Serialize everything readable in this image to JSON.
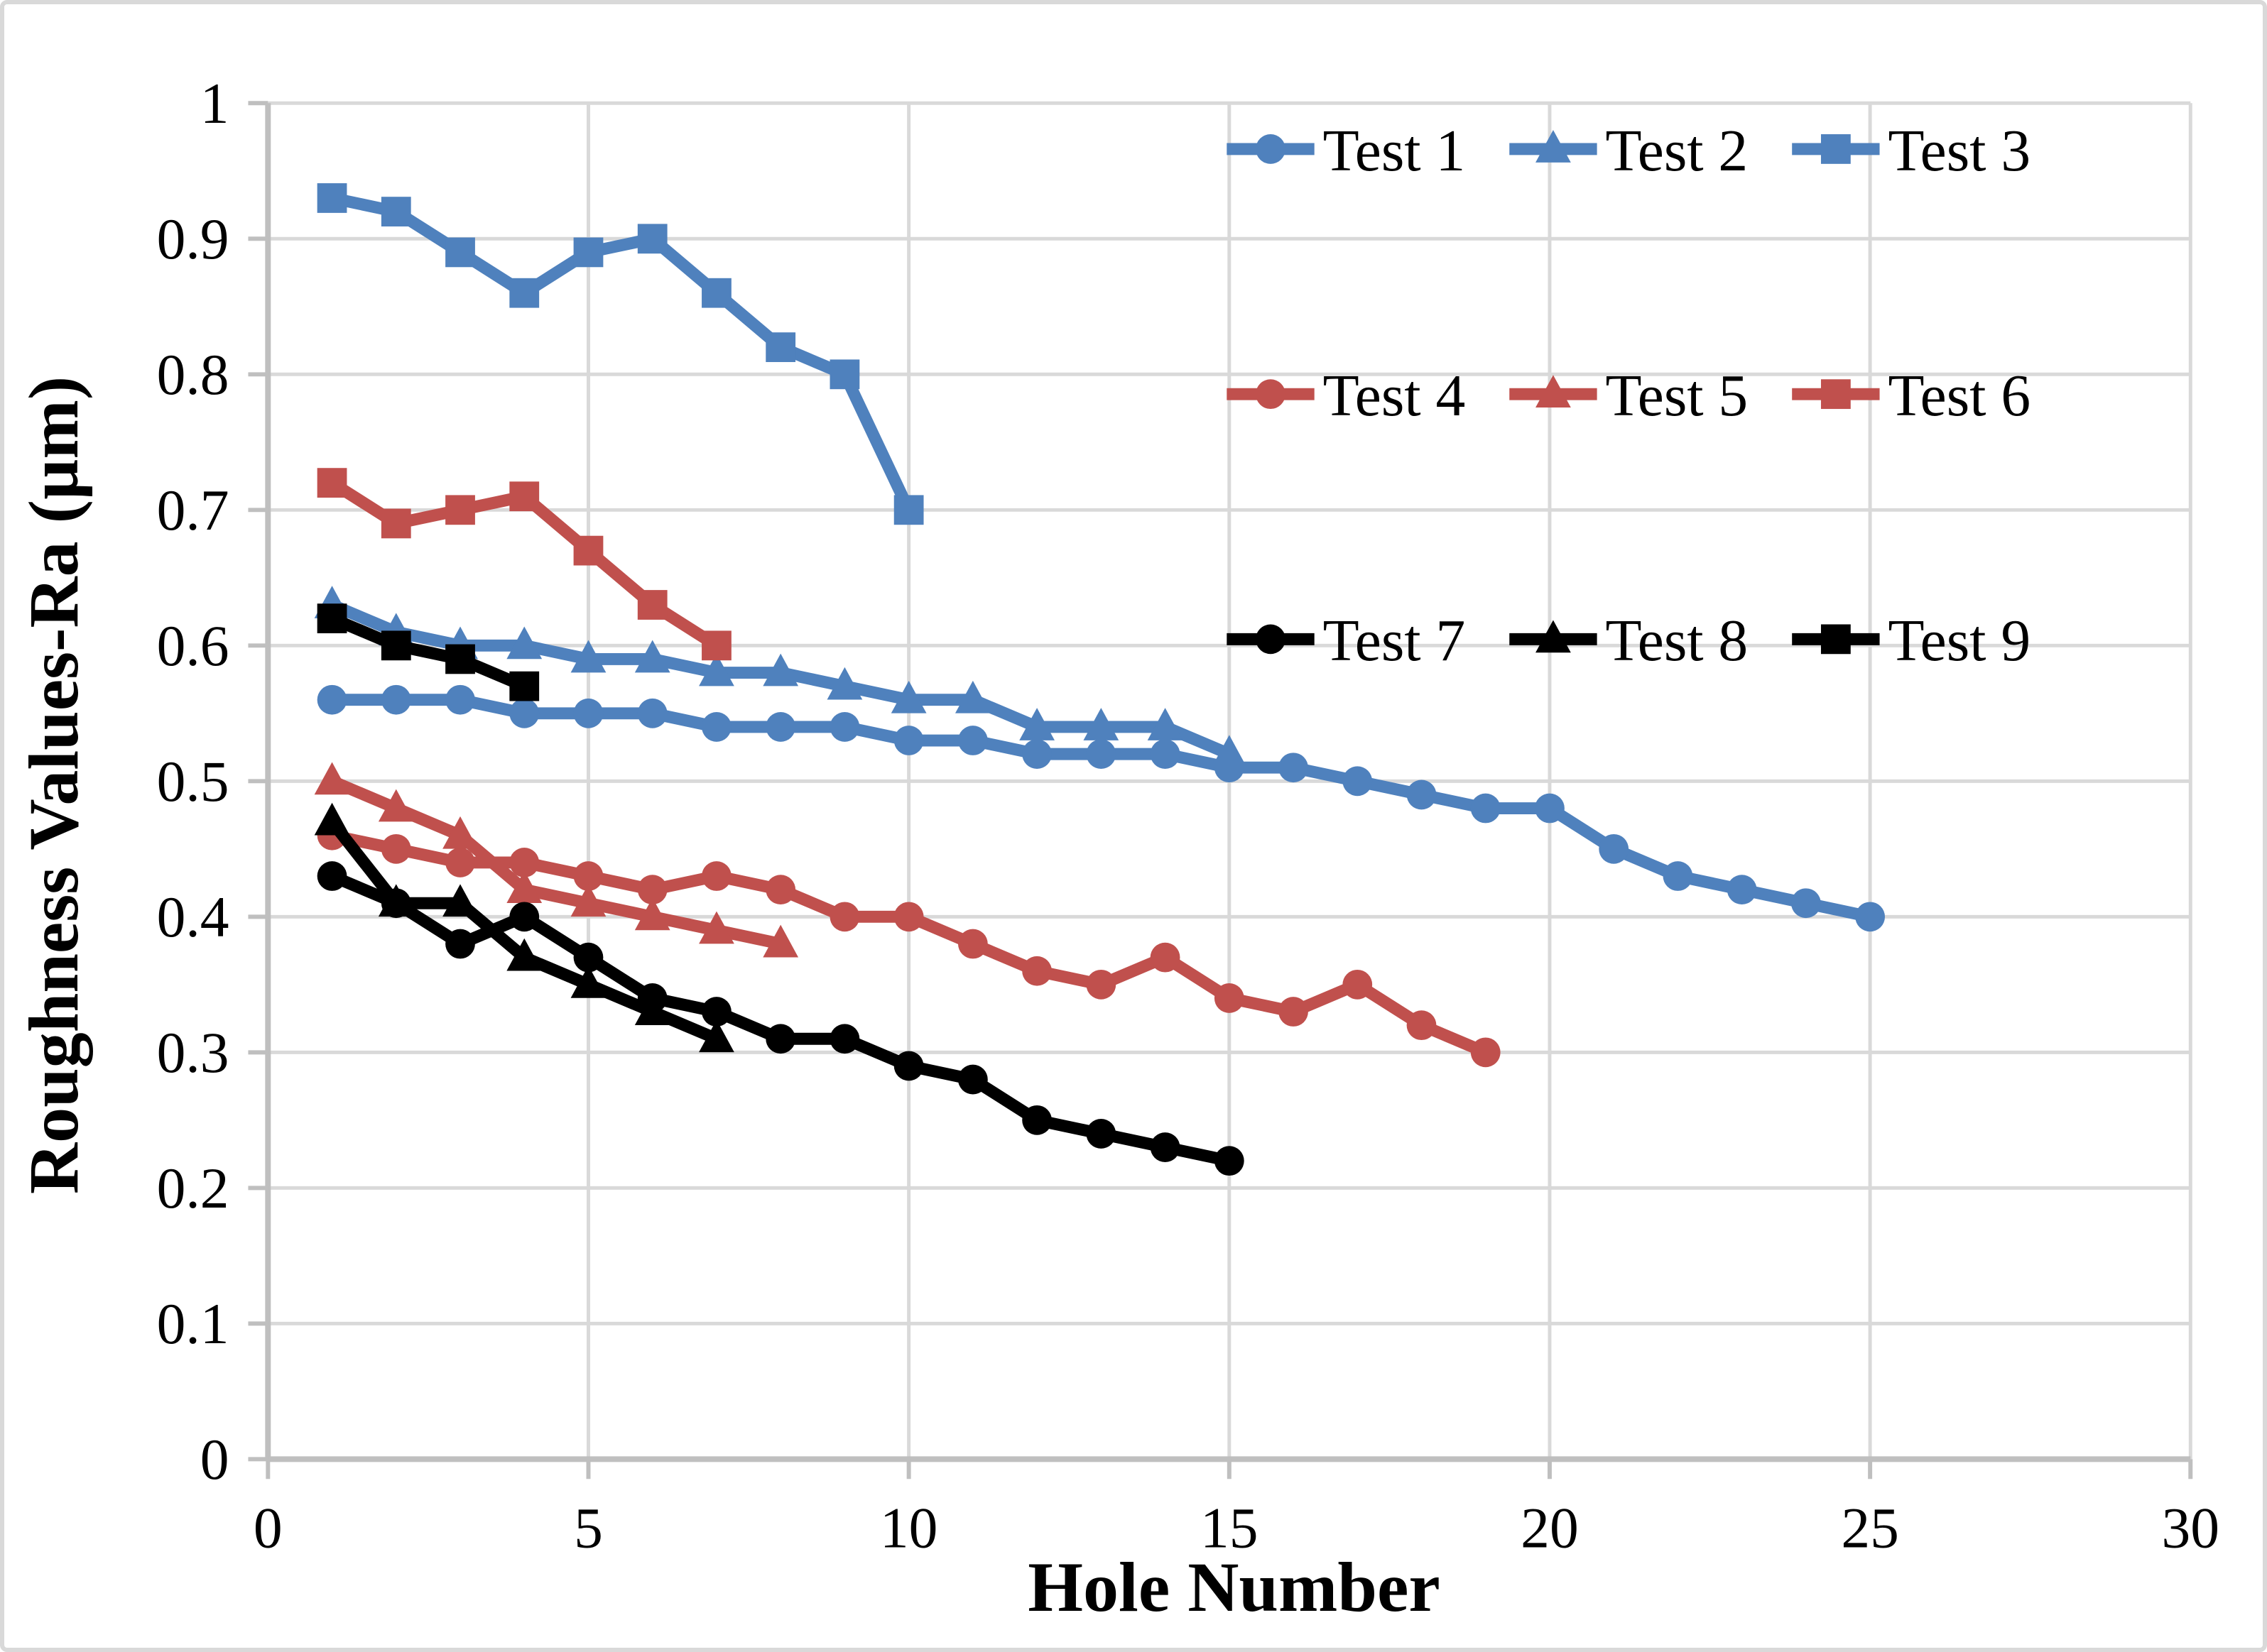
{
  "figure": {
    "background": "#ffffff",
    "border_color": "#d9d9d9"
  },
  "chart_data": {
    "type": "line",
    "title": "",
    "xlabel": "Hole Number",
    "ylabel": "Roughness Values-Ra (µm)",
    "xlim": [
      0,
      30
    ],
    "ylim": [
      0,
      1
    ],
    "xticks": [
      0,
      5,
      10,
      15,
      20,
      25,
      30
    ],
    "yticks": [
      0,
      0.1,
      0.2,
      0.3,
      0.4,
      0.5,
      0.6,
      0.7,
      0.8,
      0.9,
      1
    ],
    "grid": true,
    "gridline_color": "#d9d9d9",
    "axis_line_color": "#bfbfbf",
    "text_color": "#000000",
    "legend_position": "inside-top-right",
    "legend_columns": 3,
    "series": [
      {
        "name": "Test 1",
        "color": "#4F81BD",
        "marker": "circle",
        "x": [
          1,
          2,
          3,
          4,
          5,
          6,
          7,
          8,
          9,
          10,
          11,
          12,
          13,
          14,
          15,
          16,
          17,
          18,
          19,
          20,
          21,
          22,
          23,
          24,
          25
        ],
        "values": [
          0.56,
          0.56,
          0.56,
          0.55,
          0.55,
          0.55,
          0.54,
          0.54,
          0.54,
          0.53,
          0.53,
          0.52,
          0.52,
          0.52,
          0.51,
          0.51,
          0.5,
          0.49,
          0.48,
          0.48,
          0.45,
          0.43,
          0.42,
          0.41,
          0.4
        ]
      },
      {
        "name": "Test 2",
        "color": "#4F81BD",
        "marker": "triangle",
        "x": [
          1,
          2,
          3,
          4,
          5,
          6,
          7,
          8,
          9,
          10,
          11,
          12,
          13,
          14,
          15
        ],
        "values": [
          0.63,
          0.61,
          0.6,
          0.6,
          0.59,
          0.59,
          0.58,
          0.58,
          0.57,
          0.56,
          0.56,
          0.54,
          0.54,
          0.54,
          0.52
        ]
      },
      {
        "name": "Test 3",
        "color": "#4F81BD",
        "marker": "square",
        "x": [
          1,
          2,
          3,
          4,
          5,
          6,
          7,
          8,
          9,
          10
        ],
        "values": [
          0.93,
          0.92,
          0.89,
          0.86,
          0.89,
          0.9,
          0.86,
          0.82,
          0.8,
          0.7
        ]
      },
      {
        "name": "Test 4",
        "color": "#C0504D",
        "marker": "circle",
        "x": [
          1,
          2,
          3,
          4,
          5,
          6,
          7,
          8,
          9,
          10,
          11,
          12,
          13,
          14,
          15,
          16,
          17,
          18,
          19
        ],
        "values": [
          0.46,
          0.45,
          0.44,
          0.44,
          0.43,
          0.42,
          0.43,
          0.42,
          0.4,
          0.4,
          0.38,
          0.36,
          0.35,
          0.37,
          0.34,
          0.33,
          0.35,
          0.32,
          0.3
        ]
      },
      {
        "name": "Test 5",
        "color": "#C0504D",
        "marker": "triangle",
        "x": [
          1,
          2,
          3,
          4,
          5,
          6,
          7,
          8
        ],
        "values": [
          0.5,
          0.48,
          0.46,
          0.42,
          0.41,
          0.4,
          0.39,
          0.38
        ]
      },
      {
        "name": "Test 6",
        "color": "#C0504D",
        "marker": "square",
        "x": [
          1,
          2,
          3,
          4,
          5,
          6,
          7
        ],
        "values": [
          0.72,
          0.69,
          0.7,
          0.71,
          0.67,
          0.63,
          0.6
        ]
      },
      {
        "name": "Test 7",
        "color": "#000000",
        "marker": "circle",
        "x": [
          1,
          2,
          3,
          4,
          5,
          6,
          7,
          8,
          9,
          10,
          11,
          12,
          13,
          14,
          15
        ],
        "values": [
          0.43,
          0.41,
          0.38,
          0.4,
          0.37,
          0.34,
          0.33,
          0.31,
          0.31,
          0.29,
          0.28,
          0.25,
          0.24,
          0.23,
          0.22
        ]
      },
      {
        "name": "Test 8",
        "color": "#000000",
        "marker": "triangle",
        "x": [
          1,
          2,
          3,
          4,
          5,
          6,
          7
        ],
        "values": [
          0.47,
          0.41,
          0.41,
          0.37,
          0.35,
          0.33,
          0.31
        ]
      },
      {
        "name": "Test 9",
        "color": "#000000",
        "marker": "square",
        "x": [
          1,
          2,
          3,
          4
        ],
        "values": [
          0.62,
          0.6,
          0.59,
          0.57
        ]
      }
    ]
  }
}
